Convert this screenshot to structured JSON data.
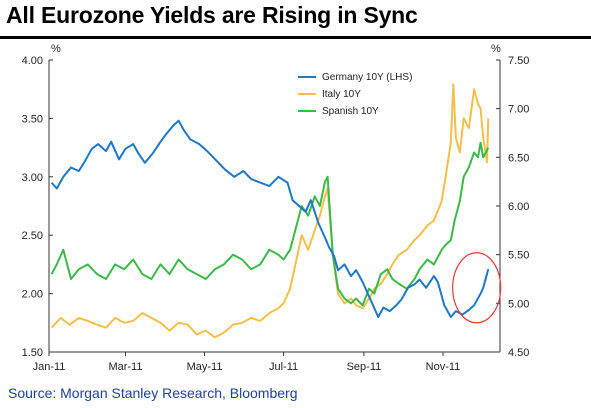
{
  "title": "All Eurozone Yields are Rising in Sync",
  "source": "Source: Morgan Stanley Research, Bloomberg",
  "chart_data": {
    "type": "line",
    "y_left": {
      "unit": "%",
      "range": [
        1.5,
        4.0
      ],
      "ticks": [
        "1.50",
        "2.00",
        "2.50",
        "3.00",
        "3.50",
        "4.00"
      ]
    },
    "y_right": {
      "unit": "%",
      "range": [
        4.5,
        7.5
      ],
      "ticks": [
        "4.50",
        "5.00",
        "5.50",
        "6.00",
        "6.50",
        "7.00",
        "7.50"
      ]
    },
    "x_ticks": [
      "Jan-11",
      "Mar-11",
      "May-11",
      "Jul-11",
      "Sep-11",
      "Nov-11"
    ],
    "x_range": [
      "2011-01-01",
      "2011-12-15"
    ],
    "grid": false,
    "legend_position": "top-right",
    "series": [
      {
        "name": "Germany 10Y (LHS)",
        "axis": "left",
        "color": "#1f77c2",
        "points": [
          [
            "2011-01-03",
            2.95
          ],
          [
            "2011-01-07",
            2.9
          ],
          [
            "2011-01-12",
            3.0
          ],
          [
            "2011-01-18",
            3.08
          ],
          [
            "2011-01-24",
            3.05
          ],
          [
            "2011-01-28",
            3.12
          ],
          [
            "2011-02-03",
            3.24
          ],
          [
            "2011-02-08",
            3.28
          ],
          [
            "2011-02-14",
            3.22
          ],
          [
            "2011-02-18",
            3.3
          ],
          [
            "2011-02-24",
            3.15
          ],
          [
            "2011-03-01",
            3.24
          ],
          [
            "2011-03-07",
            3.28
          ],
          [
            "2011-03-11",
            3.2
          ],
          [
            "2011-03-16",
            3.12
          ],
          [
            "2011-03-22",
            3.2
          ],
          [
            "2011-03-28",
            3.3
          ],
          [
            "2011-04-01",
            3.36
          ],
          [
            "2011-04-07",
            3.44
          ],
          [
            "2011-04-11",
            3.48
          ],
          [
            "2011-04-15",
            3.4
          ],
          [
            "2011-04-20",
            3.32
          ],
          [
            "2011-04-27",
            3.28
          ],
          [
            "2011-05-03",
            3.22
          ],
          [
            "2011-05-10",
            3.14
          ],
          [
            "2011-05-17",
            3.06
          ],
          [
            "2011-05-24",
            3.0
          ],
          [
            "2011-05-31",
            3.05
          ],
          [
            "2011-06-06",
            2.98
          ],
          [
            "2011-06-13",
            2.95
          ],
          [
            "2011-06-20",
            2.92
          ],
          [
            "2011-06-27",
            3.0
          ],
          [
            "2011-07-04",
            2.95
          ],
          [
            "2011-07-08",
            2.8
          ],
          [
            "2011-07-13",
            2.75
          ],
          [
            "2011-07-18",
            2.7
          ],
          [
            "2011-07-22",
            2.8
          ],
          [
            "2011-07-28",
            2.6
          ],
          [
            "2011-08-02",
            2.48
          ],
          [
            "2011-08-05",
            2.4
          ],
          [
            "2011-08-09",
            2.32
          ],
          [
            "2011-08-12",
            2.2
          ],
          [
            "2011-08-17",
            2.25
          ],
          [
            "2011-08-22",
            2.15
          ],
          [
            "2011-08-26",
            2.2
          ],
          [
            "2011-08-31",
            2.1
          ],
          [
            "2011-09-06",
            1.95
          ],
          [
            "2011-09-12",
            1.8
          ],
          [
            "2011-09-16",
            1.88
          ],
          [
            "2011-09-21",
            1.85
          ],
          [
            "2011-09-26",
            1.9
          ],
          [
            "2011-09-30",
            1.95
          ],
          [
            "2011-10-05",
            2.05
          ],
          [
            "2011-10-10",
            2.08
          ],
          [
            "2011-10-14",
            2.12
          ],
          [
            "2011-10-19",
            2.05
          ],
          [
            "2011-10-25",
            2.15
          ],
          [
            "2011-10-28",
            2.1
          ],
          [
            "2011-11-02",
            1.9
          ],
          [
            "2011-11-07",
            1.8
          ],
          [
            "2011-11-11",
            1.85
          ],
          [
            "2011-11-16",
            1.82
          ],
          [
            "2011-11-21",
            1.86
          ],
          [
            "2011-11-25",
            1.9
          ],
          [
            "2011-11-30",
            2.0
          ],
          [
            "2011-12-02",
            2.05
          ],
          [
            "2011-12-06",
            2.21
          ]
        ]
      },
      {
        "name": "Italy 10Y",
        "axis": "right",
        "color": "#f2c04a",
        "points": [
          [
            "2011-01-03",
            4.75
          ],
          [
            "2011-01-10",
            4.85
          ],
          [
            "2011-01-17",
            4.78
          ],
          [
            "2011-01-24",
            4.85
          ],
          [
            "2011-01-31",
            4.82
          ],
          [
            "2011-02-07",
            4.78
          ],
          [
            "2011-02-14",
            4.75
          ],
          [
            "2011-02-21",
            4.85
          ],
          [
            "2011-02-28",
            4.8
          ],
          [
            "2011-03-07",
            4.82
          ],
          [
            "2011-03-14",
            4.9
          ],
          [
            "2011-03-21",
            4.85
          ],
          [
            "2011-03-28",
            4.8
          ],
          [
            "2011-04-04",
            4.72
          ],
          [
            "2011-04-11",
            4.8
          ],
          [
            "2011-04-18",
            4.78
          ],
          [
            "2011-04-25",
            4.68
          ],
          [
            "2011-05-02",
            4.72
          ],
          [
            "2011-05-09",
            4.65
          ],
          [
            "2011-05-16",
            4.7
          ],
          [
            "2011-05-23",
            4.78
          ],
          [
            "2011-05-30",
            4.8
          ],
          [
            "2011-06-06",
            4.85
          ],
          [
            "2011-06-13",
            4.82
          ],
          [
            "2011-06-20",
            4.9
          ],
          [
            "2011-06-27",
            4.95
          ],
          [
            "2011-07-01",
            5.0
          ],
          [
            "2011-07-06",
            5.15
          ],
          [
            "2011-07-11",
            5.45
          ],
          [
            "2011-07-15",
            5.7
          ],
          [
            "2011-07-20",
            5.55
          ],
          [
            "2011-07-25",
            5.75
          ],
          [
            "2011-07-29",
            5.9
          ],
          [
            "2011-08-02",
            6.1
          ],
          [
            "2011-08-04",
            6.18
          ],
          [
            "2011-08-08",
            5.5
          ],
          [
            "2011-08-12",
            5.1
          ],
          [
            "2011-08-17",
            5.0
          ],
          [
            "2011-08-22",
            5.05
          ],
          [
            "2011-08-26",
            4.98
          ],
          [
            "2011-08-31",
            4.95
          ],
          [
            "2011-09-05",
            5.05
          ],
          [
            "2011-09-09",
            5.15
          ],
          [
            "2011-09-14",
            5.2
          ],
          [
            "2011-09-19",
            5.3
          ],
          [
            "2011-09-23",
            5.4
          ],
          [
            "2011-09-28",
            5.5
          ],
          [
            "2011-10-04",
            5.55
          ],
          [
            "2011-10-10",
            5.65
          ],
          [
            "2011-10-14",
            5.7
          ],
          [
            "2011-10-20",
            5.8
          ],
          [
            "2011-10-25",
            5.85
          ],
          [
            "2011-10-31",
            6.05
          ],
          [
            "2011-11-03",
            6.3
          ],
          [
            "2011-11-07",
            6.65
          ],
          [
            "2011-11-09",
            7.25
          ],
          [
            "2011-11-11",
            6.7
          ],
          [
            "2011-11-14",
            6.55
          ],
          [
            "2011-11-17",
            6.9
          ],
          [
            "2011-11-21",
            6.8
          ],
          [
            "2011-11-25",
            7.2
          ],
          [
            "2011-11-28",
            7.05
          ],
          [
            "2011-11-30",
            7.0
          ],
          [
            "2011-12-02",
            6.7
          ],
          [
            "2011-12-05",
            6.45
          ],
          [
            "2011-12-06",
            6.9
          ]
        ]
      },
      {
        "name": "Spanish 10Y",
        "axis": "right",
        "color": "#3cb84a",
        "points": [
          [
            "2011-01-03",
            5.3
          ],
          [
            "2011-01-07",
            5.4
          ],
          [
            "2011-01-12",
            5.55
          ],
          [
            "2011-01-18",
            5.25
          ],
          [
            "2011-01-24",
            5.35
          ],
          [
            "2011-01-31",
            5.4
          ],
          [
            "2011-02-07",
            5.3
          ],
          [
            "2011-02-14",
            5.25
          ],
          [
            "2011-02-21",
            5.4
          ],
          [
            "2011-02-28",
            5.35
          ],
          [
            "2011-03-07",
            5.45
          ],
          [
            "2011-03-14",
            5.3
          ],
          [
            "2011-03-21",
            5.25
          ],
          [
            "2011-03-28",
            5.4
          ],
          [
            "2011-04-04",
            5.3
          ],
          [
            "2011-04-11",
            5.45
          ],
          [
            "2011-04-18",
            5.35
          ],
          [
            "2011-04-25",
            5.3
          ],
          [
            "2011-05-02",
            5.25
          ],
          [
            "2011-05-09",
            5.35
          ],
          [
            "2011-05-16",
            5.4
          ],
          [
            "2011-05-23",
            5.5
          ],
          [
            "2011-05-30",
            5.45
          ],
          [
            "2011-06-06",
            5.35
          ],
          [
            "2011-06-13",
            5.4
          ],
          [
            "2011-06-20",
            5.55
          ],
          [
            "2011-06-27",
            5.5
          ],
          [
            "2011-07-01",
            5.45
          ],
          [
            "2011-07-06",
            5.55
          ],
          [
            "2011-07-11",
            5.8
          ],
          [
            "2011-07-15",
            6.0
          ],
          [
            "2011-07-20",
            5.9
          ],
          [
            "2011-07-25",
            6.1
          ],
          [
            "2011-07-29",
            6.0
          ],
          [
            "2011-08-02",
            6.25
          ],
          [
            "2011-08-04",
            6.3
          ],
          [
            "2011-08-08",
            5.5
          ],
          [
            "2011-08-12",
            5.15
          ],
          [
            "2011-08-17",
            5.05
          ],
          [
            "2011-08-22",
            5.0
          ],
          [
            "2011-08-26",
            5.05
          ],
          [
            "2011-08-31",
            4.98
          ],
          [
            "2011-09-05",
            5.15
          ],
          [
            "2011-09-09",
            5.1
          ],
          [
            "2011-09-14",
            5.3
          ],
          [
            "2011-09-19",
            5.35
          ],
          [
            "2011-09-23",
            5.25
          ],
          [
            "2011-09-28",
            5.2
          ],
          [
            "2011-10-04",
            5.15
          ],
          [
            "2011-10-10",
            5.25
          ],
          [
            "2011-10-14",
            5.35
          ],
          [
            "2011-10-20",
            5.45
          ],
          [
            "2011-10-25",
            5.4
          ],
          [
            "2011-10-31",
            5.55
          ],
          [
            "2011-11-03",
            5.6
          ],
          [
            "2011-11-07",
            5.65
          ],
          [
            "2011-11-10",
            5.85
          ],
          [
            "2011-11-14",
            6.05
          ],
          [
            "2011-11-17",
            6.3
          ],
          [
            "2011-11-21",
            6.4
          ],
          [
            "2011-11-25",
            6.55
          ],
          [
            "2011-11-28",
            6.5
          ],
          [
            "2011-11-30",
            6.65
          ],
          [
            "2011-12-02",
            6.5
          ],
          [
            "2011-12-06",
            6.6
          ]
        ]
      }
    ],
    "annotations": [
      {
        "type": "ellipse",
        "color": "#e23a3a",
        "center": [
          "2011-11-27",
          2.05
        ],
        "description": "highlights recent Germany 10Y rise"
      }
    ]
  }
}
